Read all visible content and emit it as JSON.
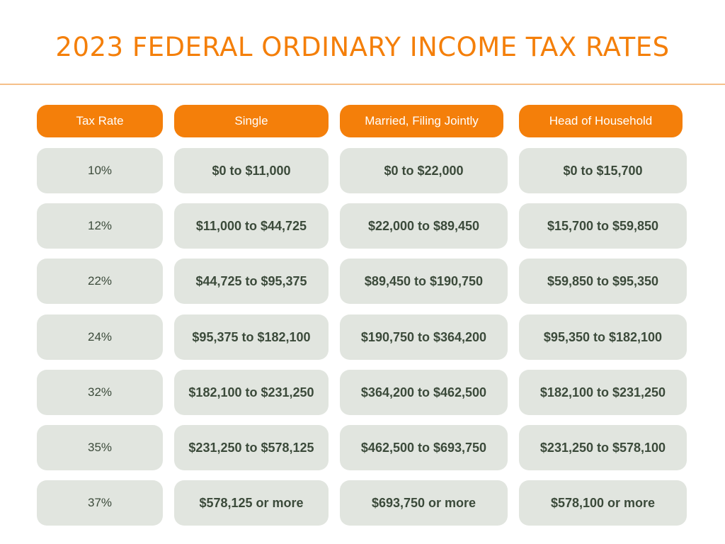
{
  "title": "2023 FEDERAL ORDINARY INCOME TAX RATES",
  "colors": {
    "accent": "#f47f0a",
    "cell_bg": "#e1e5df",
    "cell_text": "#3b4a3a",
    "divider": "#f5c089"
  },
  "table": {
    "headers": [
      "Tax Rate",
      "Single",
      "Married, Filing Jointly",
      "Head of Household"
    ],
    "rows": [
      [
        "10%",
        "$0 to $11,000",
        "$0 to $22,000",
        "$0 to $15,700"
      ],
      [
        "12%",
        "$11,000 to $44,725",
        "$22,000 to $89,450",
        "$15,700 to $59,850"
      ],
      [
        "22%",
        "$44,725 to $95,375",
        "$89,450 to $190,750",
        "$59,850 to $95,350"
      ],
      [
        "24%",
        "$95,375 to $182,100",
        "$190,750 to $364,200",
        "$95,350 to $182,100"
      ],
      [
        "32%",
        "$182,100 to $231,250",
        "$364,200 to $462,500",
        "$182,100 to $231,250"
      ],
      [
        "35%",
        "$231,250 to $578,125",
        "$462,500 to $693,750",
        "$231,250 to $578,100"
      ],
      [
        "37%",
        "$578,125 or more",
        "$693,750 or more",
        "$578,100 or more"
      ]
    ]
  }
}
